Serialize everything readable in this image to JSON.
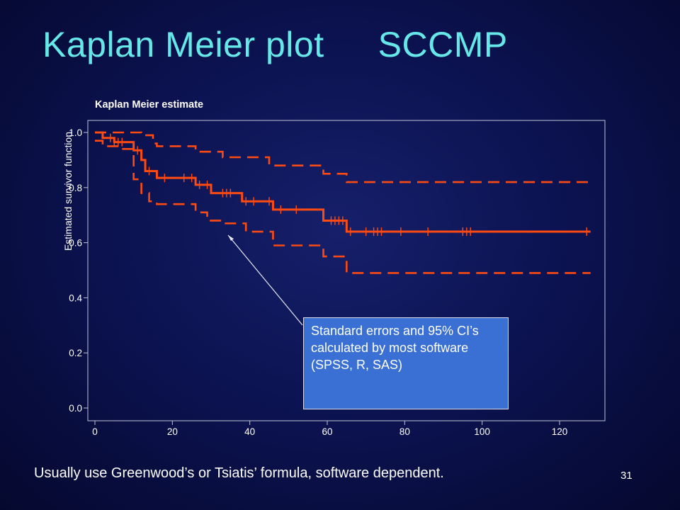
{
  "slide": {
    "title_left": "Kaplan Meier plot",
    "title_right": "SCCMP",
    "footnote": "Usually use Greenwood’s or Tsiatis’ formula, software dependent.",
    "page_number": "31",
    "callout": "Standard errors and 95% CI’s calculated by most software       (SPSS, R, SAS)"
  },
  "colors": {
    "background": "#0c1352",
    "title": "#66e8e8",
    "curve": "#ff4a12",
    "callout_box": "#3a6fd4"
  },
  "chart_data": {
    "type": "line",
    "title": "Kaplan Meier estimate",
    "xlabel": "",
    "ylabel": "Estimated survivor function",
    "xlim": [
      0,
      130
    ],
    "ylim": [
      0.0,
      1.0
    ],
    "xticks": [
      0,
      20,
      40,
      60,
      80,
      100,
      120
    ],
    "yticks": [
      "0.0",
      "0.2",
      "0.4",
      "0.6",
      "0.8",
      "1.0"
    ],
    "grid": false,
    "series": [
      {
        "style": "solid-step",
        "steps": [
          [
            0,
            1.0
          ],
          [
            2,
            0.98
          ],
          [
            5,
            0.965
          ],
          [
            10,
            0.935
          ],
          [
            12,
            0.9
          ],
          [
            13,
            0.86
          ],
          [
            16,
            0.835
          ],
          [
            23,
            0.835
          ],
          [
            26,
            0.81
          ],
          [
            30,
            0.78
          ],
          [
            38,
            0.75
          ],
          [
            46,
            0.72
          ],
          [
            59,
            0.68
          ],
          [
            65,
            0.64
          ],
          [
            128,
            0.64
          ]
        ],
        "censored": [
          4,
          5,
          6,
          7,
          11,
          14,
          18,
          23,
          25,
          27,
          29,
          33,
          34,
          35,
          39,
          41,
          45,
          48,
          52,
          61,
          62,
          63,
          64,
          66,
          70,
          72,
          73,
          74,
          79,
          86,
          95,
          96,
          97,
          127
        ]
      },
      {
        "style": "dashed-step",
        "steps": [
          [
            0,
            1.0
          ],
          [
            4,
            1.0
          ],
          [
            12,
            0.99
          ],
          [
            15,
            0.96
          ],
          [
            16,
            0.95
          ],
          [
            26,
            0.93
          ],
          [
            33,
            0.91
          ],
          [
            45,
            0.88
          ],
          [
            59,
            0.85
          ],
          [
            65,
            0.82
          ],
          [
            128,
            0.82
          ]
        ]
      },
      {
        "style": "dashed-step",
        "steps": [
          [
            0,
            0.97
          ],
          [
            2,
            0.95
          ],
          [
            7,
            0.94
          ],
          [
            10,
            0.83
          ],
          [
            12,
            0.78
          ],
          [
            14,
            0.75
          ],
          [
            16,
            0.74
          ],
          [
            26,
            0.71
          ],
          [
            29,
            0.68
          ],
          [
            33,
            0.67
          ],
          [
            39,
            0.64
          ],
          [
            46,
            0.59
          ],
          [
            59,
            0.55
          ],
          [
            65,
            0.49
          ],
          [
            128,
            0.49
          ]
        ]
      }
    ]
  }
}
